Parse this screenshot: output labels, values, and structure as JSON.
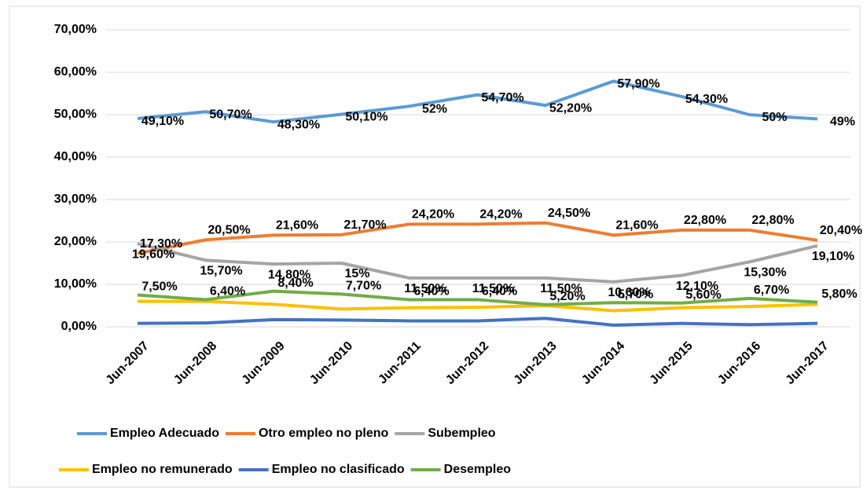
{
  "chart_data": {
    "type": "line",
    "categories": [
      "Jun-2007",
      "Jun-2008",
      "Jun-2009",
      "Jun-2010",
      "Jun-2011",
      "Jun-2012",
      "Jun-2013",
      "Jun-2014",
      "Jun-2015",
      "Jun-2016",
      "Jun-2017"
    ],
    "ylim": [
      0,
      70
    ],
    "yticks": [
      {
        "value": 0,
        "label": "0,00%"
      },
      {
        "value": 10,
        "label": "10,00%"
      },
      {
        "value": 20,
        "label": "20,00%"
      },
      {
        "value": 30,
        "label": "30,00%"
      },
      {
        "value": 40,
        "label": "40,00%"
      },
      {
        "value": 50,
        "label": "50,00%"
      },
      {
        "value": 60,
        "label": "60,00%"
      },
      {
        "value": 70,
        "label": "70,00%"
      }
    ],
    "grid": true,
    "legend": "bottom",
    "series": [
      {
        "name": "Empleo Adecuado",
        "color": "#5b9bd5",
        "values": [
          49.1,
          50.7,
          48.3,
          50.1,
          52,
          54.7,
          52.2,
          57.9,
          54.3,
          50,
          49
        ],
        "value_labels": [
          "49,10%",
          "50,70%",
          "48,30%",
          "50,10%",
          "52%",
          "54,70%",
          "52,20%",
          "57,90%",
          "54,30%",
          "50%",
          "49%"
        ]
      },
      {
        "name": "Otro empleo no pleno",
        "color": "#ed7d31",
        "values": [
          17.3,
          20.5,
          21.6,
          21.7,
          24.2,
          24.2,
          24.5,
          21.6,
          22.8,
          22.8,
          20.4
        ],
        "value_labels": [
          "17,30%",
          "20,50%",
          "21,60%",
          "21,70%",
          "24,20%",
          "24,20%",
          "24,50%",
          "21,60%",
          "22,80%",
          "22,80%",
          "20,40%"
        ]
      },
      {
        "name": "Subempleo",
        "color": "#a5a5a5",
        "values": [
          19.6,
          15.7,
          14.8,
          15,
          11.5,
          11.5,
          11.5,
          10.6,
          12.1,
          15.3,
          19.1
        ],
        "value_labels": [
          "19,60%",
          "15,70%",
          "14,80%",
          "15%",
          "11,50%",
          "11,50%",
          "11,50%",
          "10,60%",
          "12,10%",
          "15,30%",
          "19,10%"
        ]
      },
      {
        "name": "Empleo no remunerado",
        "color": "#ffc000",
        "values": [
          6.0,
          6.0,
          5.3,
          4.2,
          4.5,
          4.6,
          5.0,
          3.8,
          4.5,
          4.8,
          5.3
        ]
      },
      {
        "name": "Empleo no clasificado",
        "color": "#4472c4",
        "values": [
          0.8,
          0.9,
          1.7,
          1.6,
          1.4,
          1.4,
          2.0,
          0.4,
          0.8,
          0.5,
          0.8
        ]
      },
      {
        "name": "Desempleo",
        "color": "#70ad47",
        "values": [
          7.5,
          6.4,
          8.4,
          7.7,
          6.4,
          6.4,
          5.2,
          5.7,
          5.6,
          6.7,
          5.8
        ],
        "value_labels": [
          "7,50%",
          "6,40%",
          "8,40%",
          "7,70%",
          "6,40%",
          "6,40%",
          "5,20%",
          "5,70%",
          "5,60%",
          "6,70%",
          "5,80%"
        ]
      }
    ]
  }
}
